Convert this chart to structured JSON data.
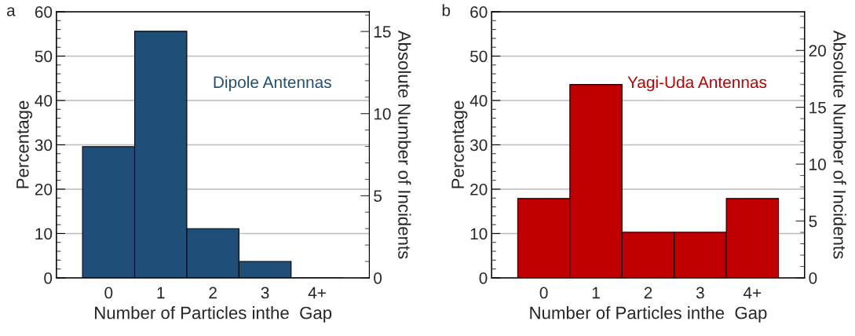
{
  "chart_data": [
    {
      "type": "bar",
      "annotations": [
        "a"
      ],
      "xlabel": "Number of Particles inthe  Gap",
      "ylabel": "Percentage",
      "y2label": "Absolute Number of Incidents",
      "categories": [
        "0",
        "1",
        "2",
        "3",
        "4+"
      ],
      "series": [
        {
          "name": "Dipole Antennas",
          "color": "#1f4e79",
          "values": [
            29.6,
            55.6,
            11.1,
            3.7,
            0
          ]
        }
      ],
      "ylim": [
        0,
        60
      ],
      "yticks": [
        0,
        10,
        20,
        30,
        40,
        50,
        60
      ],
      "y2lim": [
        0,
        16.2
      ],
      "y2ticks": [
        0,
        5,
        10,
        15
      ],
      "grid": "y",
      "legend": false
    },
    {
      "type": "bar",
      "annotations": [
        "b"
      ],
      "xlabel": "Number of Particles inthe  Gap",
      "ylabel": "Percentage",
      "y2label": "Absolute Number of Incidents",
      "categories": [
        "0",
        "1",
        "2",
        "3",
        "4+"
      ],
      "series": [
        {
          "name": "Yagi-Uda Antennas",
          "color": "#c00000",
          "values": [
            17.9,
            43.6,
            10.3,
            10.3,
            17.9
          ]
        }
      ],
      "ylim": [
        0,
        60
      ],
      "yticks": [
        0,
        10,
        20,
        30,
        40,
        50,
        60
      ],
      "y2lim": [
        0,
        23.4
      ],
      "y2ticks": [
        0,
        5,
        10,
        15,
        20
      ],
      "grid": "y",
      "legend": false
    }
  ]
}
